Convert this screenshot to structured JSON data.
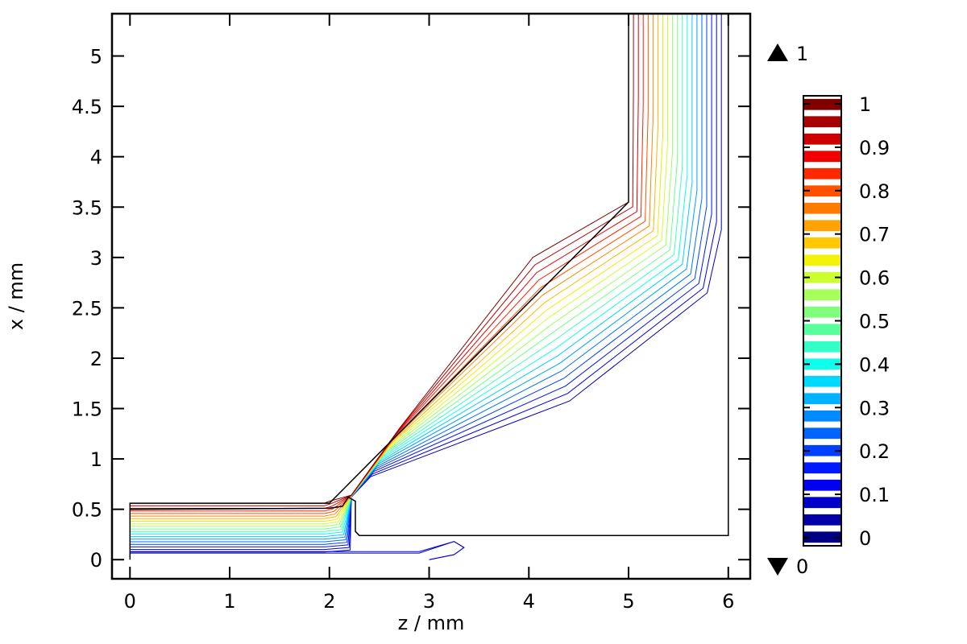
{
  "chart_data": {
    "type": "contour",
    "xlabel": "z / mm",
    "ylabel": "x / mm",
    "xlim": [
      -0.18,
      6.22
    ],
    "ylim": [
      -0.19,
      5.42
    ],
    "xticks": [
      0,
      1,
      2,
      3,
      4,
      5,
      6
    ],
    "xtick_labels": [
      "0",
      "1",
      "2",
      "3",
      "4",
      "5",
      "6"
    ],
    "yticks": [
      0,
      0.5,
      1,
      1.5,
      2,
      2.5,
      3,
      3.5,
      4,
      4.5,
      5
    ],
    "ytick_labels": [
      "0",
      "0.5",
      "1",
      "1.5",
      "2",
      "2.5",
      "3",
      "3.5",
      "4",
      "4.5",
      "5"
    ],
    "contour_levels": [
      0.05,
      0.1,
      0.15,
      0.2,
      0.25,
      0.3,
      0.35,
      0.4,
      0.45,
      0.5,
      0.55,
      0.6,
      0.65,
      0.7,
      0.75,
      0.8,
      0.85,
      0.9,
      0.95,
      1.0
    ],
    "domain_boundary": [
      [
        0,
        0
      ],
      [
        0,
        0.56
      ],
      [
        2,
        0.56
      ],
      [
        5,
        3.55
      ],
      [
        5,
        5.42
      ],
      [
        6,
        5.42
      ],
      [
        6,
        0.24
      ],
      [
        2.3,
        0.24
      ],
      [
        2.26,
        0.28
      ],
      [
        2.26,
        0.58
      ],
      [
        2.19,
        0.62
      ],
      [
        2.13,
        0.53
      ],
      [
        2.0,
        0.51
      ],
      [
        0,
        0.5
      ]
    ],
    "colorbar": {
      "min": 0,
      "max": 1,
      "tick_values": [
        0,
        0.1,
        0.2,
        0.3,
        0.4,
        0.5,
        0.6,
        0.7,
        0.8,
        0.9,
        1
      ],
      "tick_labels": [
        "0",
        "0.1",
        "0.2",
        "0.3",
        "0.4",
        "0.5",
        "0.6",
        "0.7",
        "0.8",
        "0.9",
        "1"
      ],
      "max_marker_label": "1",
      "min_marker_label": "0",
      "colors": [
        "#000080",
        "#0000a6",
        "#0000cc",
        "#0000f2",
        "#0019ff",
        "#003fff",
        "#0064ff",
        "#008cff",
        "#00b2ff",
        "#00d9ff",
        "#0fffef",
        "#35ffc9",
        "#5aff9d",
        "#80ff7c",
        "#a6ff5a",
        "#ccff32",
        "#f2f20a",
        "#ffc800",
        "#ffa300",
        "#ff7b00",
        "#ff5200",
        "#ff2900",
        "#f20000",
        "#cc0000",
        "#a60000",
        "#800000"
      ]
    }
  }
}
